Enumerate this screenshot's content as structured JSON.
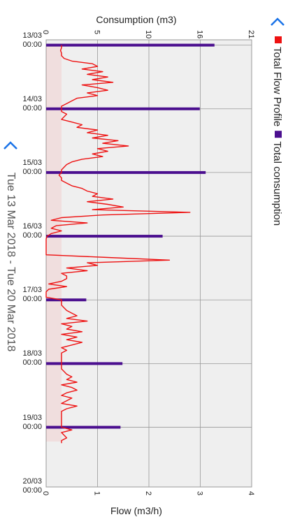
{
  "chart_data": {
    "type": "line",
    "title": "Consumption (m3)",
    "subtitle": "Tue 13 Mar 2018 - Tue 20 Mar 2018",
    "xlabel": "Flow (m3/h)",
    "xlim": [
      -2,
      166.5
    ],
    "xticks": [
      {
        "value": 0,
        "label": "13/03 00:00"
      },
      {
        "value": 24,
        "label": "14/03 00:00"
      },
      {
        "value": 48,
        "label": "15/03 00:00"
      },
      {
        "value": 72,
        "label": "16/03 00:00"
      },
      {
        "value": 96,
        "label": "17/03 00:00"
      },
      {
        "value": 120,
        "label": "18/03 00:00"
      },
      {
        "value": 144,
        "label": "19/03 00:00"
      },
      {
        "value": 168,
        "label": "20/03 00:00"
      }
    ],
    "ylim": [
      0,
      4
    ],
    "yticks": [
      0,
      1,
      2,
      3,
      4
    ],
    "y2lim": [
      0,
      21
    ],
    "y2ticks": [
      0,
      {
        "value": 5.25,
        "label": "5"
      },
      {
        "value": 10.5,
        "label": "10"
      },
      {
        "value": 15.75,
        "label": "16"
      },
      21
    ],
    "grid": true,
    "series": [
      {
        "name": "Total Flow Profile",
        "color": "#ee1111",
        "type": "line",
        "x": [
          0,
          1,
          2,
          3,
          4,
          5,
          6,
          7,
          8,
          9,
          10,
          11,
          12,
          13,
          14,
          15,
          16,
          17,
          18,
          19,
          20,
          21,
          22,
          23,
          24,
          25,
          26,
          27,
          28,
          29,
          30,
          31,
          32,
          33,
          34,
          35,
          36,
          37,
          38,
          39,
          40,
          41,
          42,
          43,
          44,
          45,
          46,
          47,
          48,
          49,
          50,
          51,
          52,
          53,
          54,
          55,
          56,
          57,
          58,
          59,
          60,
          61,
          62,
          63,
          64,
          65,
          66,
          67,
          68,
          69,
          70,
          71,
          72,
          73,
          74,
          75,
          76,
          77,
          78,
          79,
          80,
          81,
          82,
          83,
          84,
          85,
          86,
          87,
          88,
          89,
          90,
          91,
          92,
          93,
          94,
          95,
          96,
          97,
          98,
          99,
          100,
          101,
          102,
          103,
          104,
          105,
          106,
          107,
          108,
          109,
          110,
          111,
          112,
          113,
          114,
          115,
          116,
          117,
          118,
          119,
          120,
          121,
          122,
          123,
          124,
          125,
          126,
          127,
          128,
          129,
          130,
          131,
          132,
          133,
          134,
          135,
          136,
          137,
          138,
          139,
          140,
          141,
          142,
          143,
          144,
          145,
          146,
          147,
          148,
          149,
          150
        ],
        "values": [
          0.3,
          0.3,
          0.28,
          0.3,
          0.3,
          0.35,
          0.5,
          0.9,
          1.0,
          0.7,
          1.1,
          0.8,
          1.2,
          0.9,
          1.3,
          0.7,
          1.0,
          1.2,
          0.8,
          1.0,
          0.6,
          0.5,
          0.4,
          0.3,
          0.3,
          0.3,
          0.4,
          0.35,
          0.3,
          0.5,
          0.7,
          0.6,
          1.0,
          0.8,
          1.2,
          0.9,
          1.4,
          1.1,
          1.6,
          1.0,
          1.2,
          0.9,
          1.1,
          0.7,
          0.5,
          0.4,
          0.35,
          0.3,
          0.3,
          0.25,
          0.3,
          0.3,
          0.4,
          0.5,
          0.7,
          0.8,
          1.0,
          0.9,
          1.3,
          0.8,
          1.2,
          1.5,
          0.9,
          2.8,
          1.1,
          0.3,
          0.1,
          0.8,
          0.2,
          0.1,
          0.3,
          0.1,
          0.02,
          0,
          0,
          0,
          0,
          0,
          0,
          0,
          1.2,
          2.4,
          0.8,
          1.0,
          0.4,
          0.8,
          0.3,
          0.4,
          0.4,
          0.3,
          0.05,
          0.4,
          0.05,
          0,
          0,
          0,
          0.3,
          0.3,
          0.3,
          0.35,
          0.4,
          0.5,
          0.6,
          0.4,
          0.8,
          0.3,
          0.5,
          0.4,
          0.7,
          0.3,
          0.6,
          0.4,
          0.7,
          0.5,
          0.3,
          0.4,
          0.3,
          0.3,
          0.3,
          0.3,
          0.3,
          0.3,
          0.3,
          0.35,
          0.4,
          0.5,
          0.4,
          0.6,
          0.3,
          0.5,
          0.6,
          0.4,
          0.3,
          0.5,
          0.4,
          0.3,
          0.6,
          0.4,
          0.3,
          0.3,
          0.3,
          0.3,
          0.3,
          0.3,
          0.3,
          0.5,
          0.3,
          0.35,
          0.4,
          0.3,
          0.3
        ]
      },
      {
        "name": "Total consumption",
        "color": "#4b0f8f",
        "type": "bar",
        "axis": "y2",
        "x": [
          0,
          24,
          48,
          72,
          96,
          120,
          144
        ],
        "values": [
          17.2,
          15.7,
          16.3,
          11.9,
          4.1,
          7.8,
          7.6
        ]
      }
    ]
  }
}
